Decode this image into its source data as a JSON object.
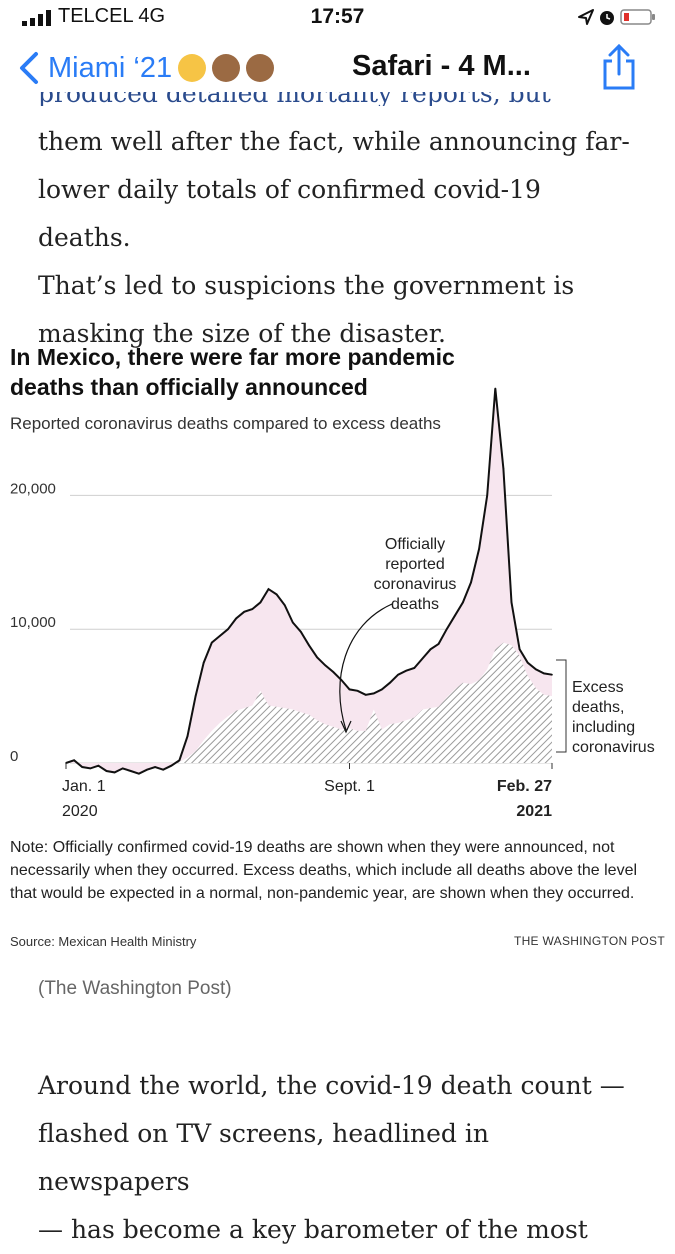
{
  "status_bar": {
    "carrier": "TELCEL   4G",
    "time": "17:57"
  },
  "nav": {
    "back_label": "Miami ‘21",
    "title": "Safari - 4 M..."
  },
  "article": {
    "cut_line": "produced detailed mortality reports, but released",
    "paragraph_top_lines": [
      "them well after the fact, while announcing far-",
      "lower daily totals of confirmed covid-19 deaths.",
      "That’s led to suspicions the government is",
      "masking the size of the disaster."
    ],
    "paragraph_bottom_lines": [
      "Around the world, the covid-19 death count —",
      "flashed on TV screens, headlined in newspapers",
      "— has become a key barometer of the most"
    ],
    "caption": "(The Washington Post)"
  },
  "graphic": {
    "title_lines": [
      "In Mexico, there were far more pandemic",
      "deaths than officially announced"
    ],
    "subtitle": "Reported coronavirus deaths compared to excess deaths",
    "note": "Note: Officially confirmed covid-19 deaths are shown when they were announced, not necessarily when they occurred. Excess deaths, which include all deaths above the level that would be expected in a normal, non-pandemic year, are shown when they occurred.",
    "source": "Source: Mexican Health Ministry",
    "credit": "THE WASHINGTON POST"
  },
  "chart_data": {
    "type": "area",
    "ylim": [
      0,
      29000
    ],
    "y_ticks": [
      "0",
      "10,000",
      "20,000"
    ],
    "y_tick_values": [
      0,
      10000,
      20000
    ],
    "x_labels": [
      {
        "line1": "Jan. 1",
        "line2": "2020"
      },
      {
        "line1": "Sept. 1",
        "line2": ""
      },
      {
        "line1": "Feb. 27",
        "line2": "2021"
      }
    ],
    "x_label_weeks": [
      0,
      35,
      60
    ],
    "annotation_reported": [
      "Officially",
      "reported",
      "coronavirus",
      "deaths"
    ],
    "annotation_excess": [
      "Excess",
      "deaths,",
      "including",
      "coronavirus"
    ],
    "series": [
      {
        "name": "Excess deaths, including coronavirus",
        "x": [
          0,
          1,
          2,
          3,
          4,
          5,
          6,
          7,
          8,
          9,
          10,
          11,
          12,
          13,
          14,
          15,
          16,
          17,
          18,
          19,
          20,
          21,
          22,
          23,
          24,
          25,
          26,
          27,
          28,
          29,
          30,
          31,
          32,
          33,
          34,
          35,
          36,
          37,
          38,
          39,
          40,
          41,
          42,
          43,
          44,
          45,
          46,
          47,
          48,
          49,
          50,
          51,
          52,
          53,
          54,
          55,
          56,
          57,
          58,
          59,
          60
        ],
        "values": [
          0,
          200,
          -300,
          -400,
          -200,
          -600,
          -700,
          -400,
          -600,
          -800,
          -500,
          -300,
          -500,
          -200,
          200,
          2000,
          5000,
          7500,
          9000,
          9500,
          10000,
          10800,
          11300,
          11500,
          12000,
          13000,
          12600,
          11800,
          10500,
          9800,
          8800,
          7900,
          7300,
          6800,
          6200,
          5500,
          5400,
          5100,
          5200,
          5500,
          6000,
          6600,
          6900,
          7100,
          7800,
          8500,
          8900,
          10000,
          11000,
          12000,
          13500,
          16000,
          20000,
          28000,
          22000,
          12000,
          8500,
          7500,
          7000,
          6700,
          6600
        ]
      },
      {
        "name": "Officially reported coronavirus deaths",
        "x": [
          0,
          1,
          2,
          3,
          4,
          5,
          6,
          7,
          8,
          9,
          10,
          11,
          12,
          13,
          14,
          15,
          16,
          17,
          18,
          19,
          20,
          21,
          22,
          23,
          24,
          25,
          26,
          27,
          28,
          29,
          30,
          31,
          32,
          33,
          34,
          35,
          36,
          37,
          38,
          39,
          40,
          41,
          42,
          43,
          44,
          45,
          46,
          47,
          48,
          49,
          50,
          51,
          52,
          53,
          54,
          55,
          56,
          57,
          58,
          59,
          60
        ],
        "values": [
          0,
          0,
          0,
          0,
          0,
          0,
          0,
          0,
          0,
          0,
          0,
          0,
          0,
          0,
          100,
          400,
          900,
          1700,
          2400,
          3000,
          3500,
          3900,
          4100,
          4300,
          5400,
          4300,
          4200,
          4100,
          4000,
          3800,
          3600,
          3200,
          2900,
          2700,
          2500,
          2600,
          2400,
          2400,
          4000,
          2500,
          2900,
          3000,
          3200,
          3400,
          4000,
          4100,
          4200,
          4900,
          5500,
          6000,
          5900,
          6200,
          7000,
          8500,
          9000,
          8800,
          8000,
          6500,
          5600,
          5100,
          5000
        ]
      }
    ]
  }
}
